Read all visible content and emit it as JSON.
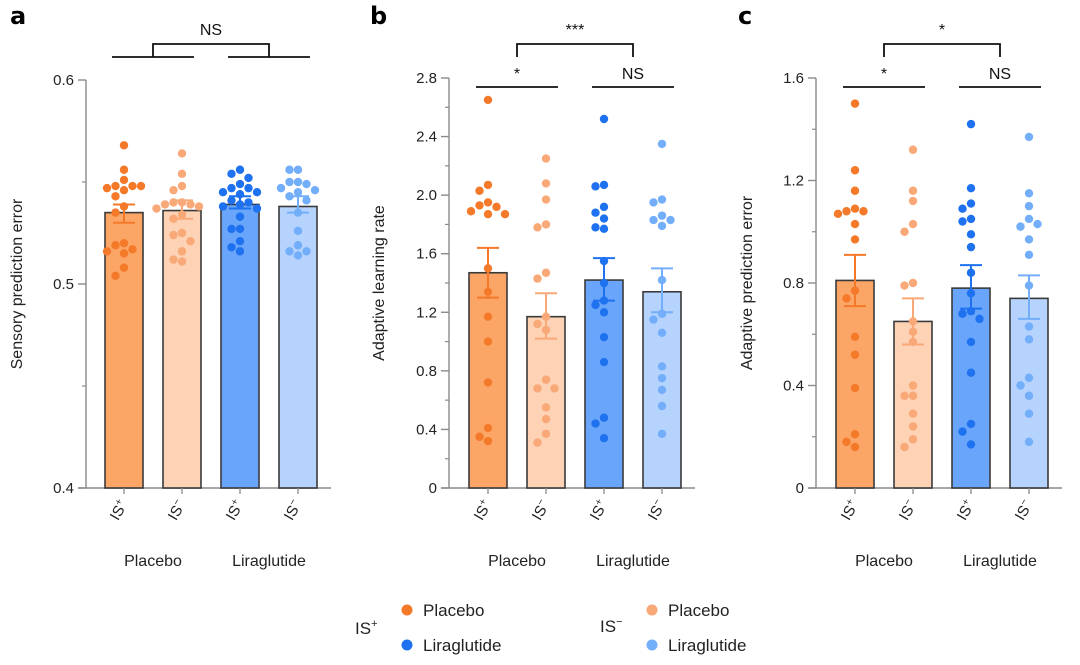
{
  "colors": {
    "is_plus_placebo_dot": "#f47a2a",
    "is_plus_placebo_bar": "#fba566",
    "is_minus_placebo_dot": "#f9a877",
    "is_minus_placebo_bar": "#fdd2b5",
    "is_plus_liraglutide_dot": "#1f72ef",
    "is_plus_liraglutide_bar": "#69a6fb",
    "is_minus_liraglutide_dot": "#73aefb",
    "is_minus_liraglutide_bar": "#b6d3fd",
    "bar_edge": "#3a3a3a",
    "axis": "#8a8a8a"
  },
  "legend": {
    "groups": [
      {
        "label": "IS",
        "sup": "+",
        "items": [
          {
            "label": "Placebo",
            "color_key": "is_plus_placebo_dot"
          },
          {
            "label": "Liraglutide",
            "color_key": "is_plus_liraglutide_dot"
          }
        ]
      },
      {
        "label": "IS",
        "sup": "−",
        "items": [
          {
            "label": "Placebo",
            "color_key": "is_minus_placebo_dot"
          },
          {
            "label": "Liraglutide",
            "color_key": "is_minus_liraglutide_dot"
          }
        ]
      }
    ]
  },
  "chart_data": [
    {
      "panel": "a",
      "type": "bar",
      "ylabel": "Sensory prediction error",
      "ylim": [
        0.4,
        0.6
      ],
      "yticks": [
        0.4,
        0.5,
        0.6
      ],
      "ytick_labels": [
        "0.4",
        "0.5",
        "0.6"
      ],
      "yminor": [
        0.45,
        0.55
      ],
      "categories": [
        "IS+",
        "IS−",
        "IS+",
        "IS−"
      ],
      "category_display": [
        {
          "base": "IS",
          "sup": "+"
        },
        {
          "base": "IS",
          "sup": "−"
        },
        {
          "base": "IS",
          "sup": "+"
        },
        {
          "base": "IS",
          "sup": "−"
        }
      ],
      "groups": [
        "Placebo",
        "Liraglutide"
      ],
      "series": [
        {
          "name": "IS+ Placebo",
          "color_key": "is_plus_placebo",
          "mean": 0.535,
          "sem": [
            0.53,
            0.539
          ],
          "points": [
            0.568,
            0.556,
            0.551,
            0.548,
            0.548,
            0.546,
            0.547,
            0.548,
            0.543,
            0.538,
            0.535,
            0.52,
            0.519,
            0.517,
            0.516,
            0.515,
            0.508,
            0.504
          ]
        },
        {
          "name": "IS− Placebo",
          "color_key": "is_minus_placebo",
          "mean": 0.536,
          "sem": [
            0.532,
            0.541
          ],
          "points": [
            0.564,
            0.554,
            0.548,
            0.546,
            0.54,
            0.54,
            0.539,
            0.539,
            0.538,
            0.537,
            0.534,
            0.532,
            0.525,
            0.524,
            0.521,
            0.516,
            0.512,
            0.511
          ]
        },
        {
          "name": "IS+ Liraglutide",
          "color_key": "is_plus_liraglutide",
          "mean": 0.539,
          "sem": [
            0.537,
            0.543
          ],
          "points": [
            0.556,
            0.554,
            0.552,
            0.549,
            0.547,
            0.547,
            0.545,
            0.545,
            0.544,
            0.541,
            0.54,
            0.539,
            0.538,
            0.537,
            0.533,
            0.527,
            0.527,
            0.521,
            0.518,
            0.516
          ]
        },
        {
          "name": "IS− Liraglutide",
          "color_key": "is_minus_liraglutide",
          "mean": 0.538,
          "sem": [
            0.535,
            0.543
          ],
          "points": [
            0.556,
            0.556,
            0.55,
            0.55,
            0.549,
            0.547,
            0.546,
            0.545,
            0.543,
            0.541,
            0.535,
            0.526,
            0.519,
            0.516,
            0.516,
            0.514
          ]
        }
      ],
      "significance": [
        {
          "label": "NS",
          "type": "group-vs-group",
          "left": [
            0,
            1
          ],
          "right": [
            2,
            3
          ]
        }
      ]
    },
    {
      "panel": "b",
      "type": "bar",
      "ylabel": "Adaptive learning rate",
      "ylim": [
        0,
        2.8
      ],
      "yticks": [
        0,
        0.4,
        0.8,
        1.2,
        1.6,
        2.0,
        2.4,
        2.8
      ],
      "ytick_labels": [
        "0",
        "0.4",
        "0.8",
        "1.2",
        "1.6",
        "2.0",
        "2.4",
        "2.8"
      ],
      "yminor": [
        0.2,
        0.6,
        1.0,
        1.4,
        1.8,
        2.2,
        2.6
      ],
      "categories": [
        "IS+",
        "IS−",
        "IS+",
        "IS−"
      ],
      "category_display": [
        {
          "base": "IS",
          "sup": "+"
        },
        {
          "base": "IS",
          "sup": "−"
        },
        {
          "base": "IS",
          "sup": "+"
        },
        {
          "base": "IS",
          "sup": "−"
        }
      ],
      "groups": [
        "Placebo",
        "Liraglutide"
      ],
      "series": [
        {
          "name": "IS+ Placebo",
          "color_key": "is_plus_placebo",
          "mean": 1.47,
          "sem": [
            1.3,
            1.64
          ],
          "points": [
            2.65,
            2.07,
            2.03,
            1.95,
            1.93,
            1.92,
            1.89,
            1.87,
            1.87,
            1.5,
            1.34,
            1.17,
            1.0,
            0.72,
            0.41,
            0.35,
            0.32
          ]
        },
        {
          "name": "IS− Placebo",
          "color_key": "is_minus_placebo",
          "mean": 1.17,
          "sem": [
            1.02,
            1.33
          ],
          "points": [
            2.25,
            2.08,
            1.97,
            1.8,
            1.78,
            1.47,
            1.43,
            1.17,
            1.12,
            1.08,
            0.74,
            0.68,
            0.68,
            0.55,
            0.47,
            0.37,
            0.31
          ]
        },
        {
          "name": "IS+ Liraglutide",
          "color_key": "is_plus_liraglutide",
          "mean": 1.42,
          "sem": [
            1.28,
            1.57
          ],
          "points": [
            2.52,
            2.07,
            2.06,
            1.92,
            1.88,
            1.84,
            1.78,
            1.77,
            1.55,
            1.4,
            1.28,
            1.25,
            1.2,
            1.03,
            0.86,
            0.48,
            0.44,
            0.34
          ]
        },
        {
          "name": "IS− Liraglutide",
          "color_key": "is_minus_liraglutide",
          "mean": 1.34,
          "sem": [
            1.2,
            1.5
          ],
          "points": [
            2.35,
            1.97,
            1.95,
            1.86,
            1.83,
            1.83,
            1.79,
            1.42,
            1.19,
            1.15,
            1.06,
            0.83,
            0.75,
            0.67,
            0.56,
            0.37
          ]
        }
      ],
      "significance": [
        {
          "label": "*",
          "type": "pair",
          "left": [
            0
          ],
          "right": [
            1
          ]
        },
        {
          "label": "NS",
          "type": "pair",
          "left": [
            2
          ],
          "right": [
            3
          ]
        },
        {
          "label": "***",
          "type": "group-vs-group",
          "left": [
            0,
            1
          ],
          "right": [
            2,
            3
          ]
        }
      ]
    },
    {
      "panel": "c",
      "type": "bar",
      "ylabel": "Adaptive prediction error",
      "ylim": [
        0,
        1.6
      ],
      "yticks": [
        0,
        0.4,
        0.8,
        1.2,
        1.6
      ],
      "ytick_labels": [
        "0",
        "0.4",
        "0.8",
        "1.2",
        "1.6"
      ],
      "yminor": [
        0.2,
        0.6,
        1.0,
        1.4
      ],
      "categories": [
        "IS+",
        "IS−",
        "IS+",
        "IS−"
      ],
      "category_display": [
        {
          "base": "IS",
          "sup": "+"
        },
        {
          "base": "IS",
          "sup": "−"
        },
        {
          "base": "IS",
          "sup": "+"
        },
        {
          "base": "IS",
          "sup": "−"
        }
      ],
      "groups": [
        "Placebo",
        "Liraglutide"
      ],
      "series": [
        {
          "name": "IS+ Placebo",
          "color_key": "is_plus_placebo",
          "mean": 0.81,
          "sem": [
            0.71,
            0.91
          ],
          "points": [
            1.5,
            1.24,
            1.16,
            1.09,
            1.08,
            1.08,
            1.07,
            1.03,
            0.97,
            0.77,
            0.74,
            0.59,
            0.52,
            0.39,
            0.21,
            0.18,
            0.16
          ]
        },
        {
          "name": "IS− Placebo",
          "color_key": "is_minus_placebo",
          "mean": 0.65,
          "sem": [
            0.56,
            0.74
          ],
          "points": [
            1.32,
            1.16,
            1.12,
            1.03,
            1.0,
            0.8,
            0.79,
            0.65,
            0.61,
            0.57,
            0.4,
            0.36,
            0.36,
            0.29,
            0.24,
            0.19,
            0.16
          ]
        },
        {
          "name": "IS+ Liraglutide",
          "color_key": "is_plus_liraglutide",
          "mean": 0.78,
          "sem": [
            0.7,
            0.87
          ],
          "points": [
            1.42,
            1.17,
            1.11,
            1.09,
            1.05,
            1.04,
            0.99,
            0.94,
            0.84,
            0.76,
            0.69,
            0.68,
            0.66,
            0.57,
            0.45,
            0.25,
            0.22,
            0.17
          ]
        },
        {
          "name": "IS− Liraglutide",
          "color_key": "is_minus_liraglutide",
          "mean": 0.74,
          "sem": [
            0.66,
            0.83
          ],
          "points": [
            1.37,
            1.15,
            1.1,
            1.05,
            1.02,
            1.03,
            0.97,
            0.91,
            0.79,
            0.63,
            0.58,
            0.43,
            0.4,
            0.36,
            0.29,
            0.18
          ]
        }
      ],
      "significance": [
        {
          "label": "*",
          "type": "pair",
          "left": [
            0
          ],
          "right": [
            1
          ]
        },
        {
          "label": "NS",
          "type": "pair",
          "left": [
            2
          ],
          "right": [
            3
          ]
        },
        {
          "label": "*",
          "type": "group-vs-group",
          "left": [
            0,
            1
          ],
          "right": [
            2,
            3
          ]
        }
      ]
    }
  ]
}
